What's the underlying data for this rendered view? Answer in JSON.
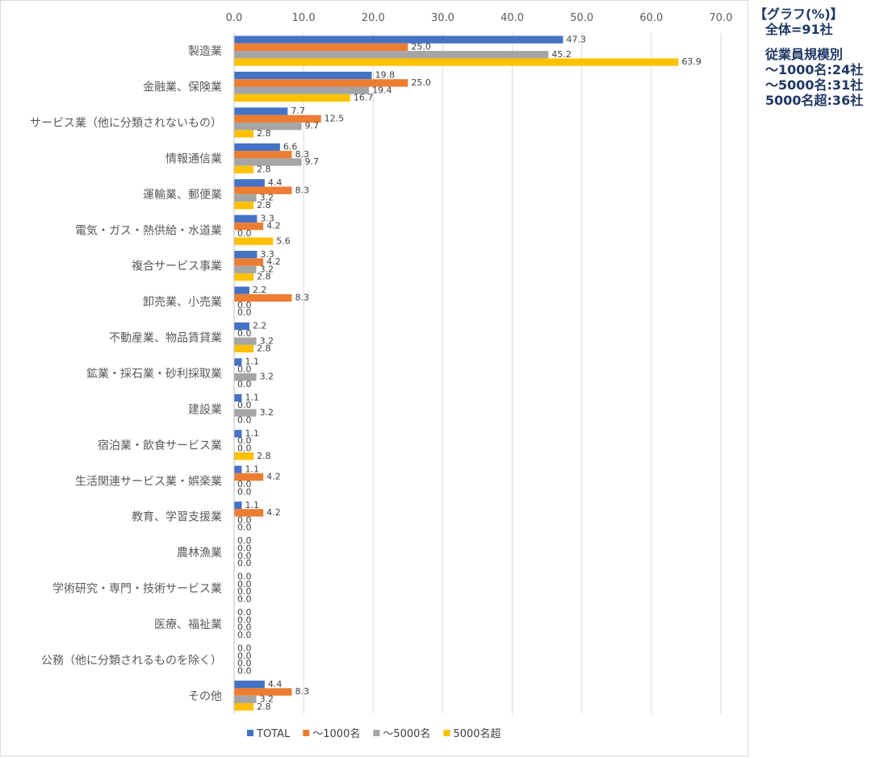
{
  "note": {
    "title": "【グラフ(%)】",
    "total": "全体=91社",
    "breakdown_title": "従業員規模別",
    "lines": [
      "～1000名:24社",
      "～5000名:31社",
      "5000名超:36社"
    ]
  },
  "chart_data": {
    "type": "bar",
    "orientation": "horizontal",
    "xlim": [
      0,
      70
    ],
    "x_ticks": [
      0,
      10,
      20,
      30,
      40,
      50,
      60,
      70
    ],
    "x_tick_labels": [
      "0.0",
      "10.0",
      "20.0",
      "30.0",
      "40.0",
      "50.0",
      "60.0",
      "70.0"
    ],
    "grid": true,
    "legend_position": "bottom",
    "categories": [
      "製造業",
      "金融業、保険業",
      "サービス業（他に分類されないもの）",
      "情報通信業",
      "運輸業、郵便業",
      "電気・ガス・熱供給・水道業",
      "複合サービス事業",
      "卸売業、小売業",
      "不動産業、物品賃貸業",
      "鉱業・採石業・砂利採取業",
      "建設業",
      "宿泊業・飲食サービス業",
      "生活関連サービス業・娯楽業",
      "教育、学習支援業",
      "農林漁業",
      "学術研究・専門・技術サービス業",
      "医療、福祉業",
      "公務（他に分類されるものを除く）",
      "その他"
    ],
    "series": [
      {
        "name": "TOTAL",
        "color": "#4472c4",
        "values": [
          47.3,
          19.8,
          7.7,
          6.6,
          4.4,
          3.3,
          3.3,
          2.2,
          2.2,
          1.1,
          1.1,
          1.1,
          1.1,
          1.1,
          0.0,
          0.0,
          0.0,
          0.0,
          4.4
        ]
      },
      {
        "name": "～1000名",
        "color": "#ed7d31",
        "values": [
          25.0,
          25.0,
          12.5,
          8.3,
          8.3,
          4.2,
          4.2,
          8.3,
          0.0,
          0.0,
          0.0,
          0.0,
          4.2,
          4.2,
          0.0,
          0.0,
          0.0,
          0.0,
          8.3
        ]
      },
      {
        "name": "～5000名",
        "color": "#a5a5a5",
        "values": [
          45.2,
          19.4,
          9.7,
          9.7,
          3.2,
          0.0,
          3.2,
          0.0,
          3.2,
          3.2,
          3.2,
          0.0,
          0.0,
          0.0,
          0.0,
          0.0,
          0.0,
          0.0,
          3.2
        ]
      },
      {
        "name": "5000名超",
        "color": "#ffc000",
        "values": [
          63.9,
          16.7,
          2.8,
          2.8,
          2.8,
          5.6,
          2.8,
          0.0,
          2.8,
          0.0,
          0.0,
          2.8,
          0.0,
          0.0,
          0.0,
          0.0,
          0.0,
          0.0,
          2.8
        ]
      }
    ]
  }
}
